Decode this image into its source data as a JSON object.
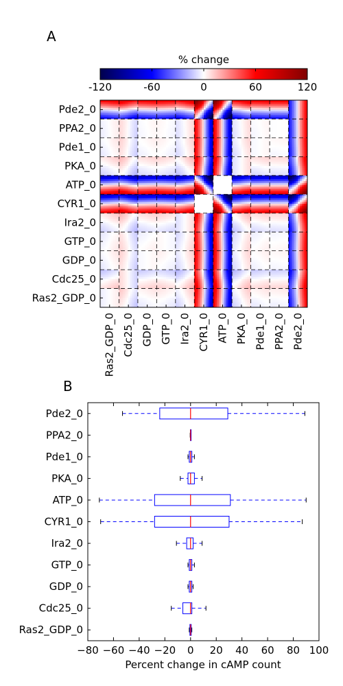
{
  "panels": {
    "a_label": "A",
    "b_label": "B"
  },
  "colors": {
    "box": "#0000ff",
    "median": "#ff0000",
    "cmap": [
      "#00004c",
      "#0000ff",
      "#ffffff",
      "#ff0000",
      "#800000"
    ]
  },
  "chart_data": [
    {
      "type": "heatmap",
      "panel": "A",
      "title": "",
      "colorbar": {
        "label": "% change",
        "ticks": [
          -120,
          -60,
          0,
          60,
          120
        ],
        "range": [
          -120,
          120
        ],
        "tick_labels": [
          "-120",
          "-60",
          "0",
          "60",
          "120"
        ]
      },
      "params": [
        "Ras2_GDP_0",
        "Cdc25_0",
        "GDP_0",
        "GTP_0",
        "Ira2_0",
        "CYR1_0",
        "ATP_0",
        "PKA_0",
        "Pde1_0",
        "PPA2_0",
        "Pde2_0"
      ],
      "y_order_top_to_bottom": [
        "Pde2_0",
        "PPA2_0",
        "Pde1_0",
        "PKA_0",
        "ATP_0",
        "CYR1_0",
        "Ira2_0",
        "GTP_0",
        "GDP_0",
        "Cdc25_0",
        "Ras2_GDP_0"
      ],
      "sensitivity": {
        "Ras2_GDP_0": {
          "dir": 1,
          "amp": 4
        },
        "Cdc25_0": {
          "dir": -1,
          "amp": 10
        },
        "GDP_0": {
          "dir": 1,
          "amp": 2
        },
        "GTP_0": {
          "dir": -1,
          "amp": 2
        },
        "Ira2_0": {
          "dir": 1,
          "amp": 8
        },
        "CYR1_0": {
          "dir": -1,
          "amp": 70
        },
        "ATP_0": {
          "dir": -1,
          "amp": 72
        },
        "PKA_0": {
          "dir": 1,
          "amp": 8
        },
        "Pde1_0": {
          "dir": 1,
          "amp": 2
        },
        "PPA2_0": {
          "dir": 1,
          "amp": 0.5
        },
        "Pde2_0": {
          "dir": 1,
          "amp": 60
        }
      },
      "grid": true,
      "grid_style": "dashed"
    },
    {
      "type": "box",
      "panel": "B",
      "title": "",
      "xlabel": "Percent change in cAMP count",
      "xlim": [
        -80,
        100
      ],
      "xticks": [
        -80,
        -60,
        -40,
        -20,
        0,
        20,
        40,
        60,
        80,
        100
      ],
      "xtick_labels": [
        "−80",
        "−60",
        "−40",
        "−20",
        "0",
        "20",
        "40",
        "60",
        "80",
        "100"
      ],
      "categories_top_to_bottom": [
        "Pde2_0",
        "PPA2_0",
        "Pde1_0",
        "PKA_0",
        "ATP_0",
        "CYR1_0",
        "Ira2_0",
        "GTP_0",
        "GDP_0",
        "Cdc25_0",
        "Ras2_GDP_0"
      ],
      "boxes": [
        {
          "name": "Pde2_0",
          "whislo": -53,
          "q1": -24,
          "med": 0,
          "q3": 29,
          "whishi": 89
        },
        {
          "name": "PPA2_0",
          "whislo": -0.3,
          "q1": -0.1,
          "med": 0,
          "q3": 0.1,
          "whishi": 0.3
        },
        {
          "name": "Pde1_0",
          "whislo": -2,
          "q1": -1,
          "med": 0,
          "q3": 1,
          "whishi": 3
        },
        {
          "name": "PKA_0",
          "whislo": -8,
          "q1": -2,
          "med": 0,
          "q3": 3,
          "whishi": 9
        },
        {
          "name": "ATP_0",
          "whislo": -71,
          "q1": -28,
          "med": 0,
          "q3": 31,
          "whishi": 90
        },
        {
          "name": "CYR1_0",
          "whislo": -70,
          "q1": -28,
          "med": 0,
          "q3": 30,
          "whishi": 87
        },
        {
          "name": "Ira2_0",
          "whislo": -11,
          "q1": -3,
          "med": 0,
          "q3": 2,
          "whishi": 9
        },
        {
          "name": "GTP_0",
          "whislo": -2,
          "q1": -1,
          "med": 0,
          "q3": 1,
          "whishi": 3
        },
        {
          "name": "GDP_0",
          "whislo": -2,
          "q1": -1,
          "med": 0,
          "q3": 1,
          "whishi": 2
        },
        {
          "name": "Cdc25_0",
          "whislo": -15,
          "q1": -6,
          "med": 0,
          "q3": 1,
          "whishi": 12
        },
        {
          "name": "Ras2_GDP_0",
          "whislo": -1,
          "q1": -0.5,
          "med": 0,
          "q3": 0.5,
          "whishi": 1
        }
      ]
    }
  ]
}
